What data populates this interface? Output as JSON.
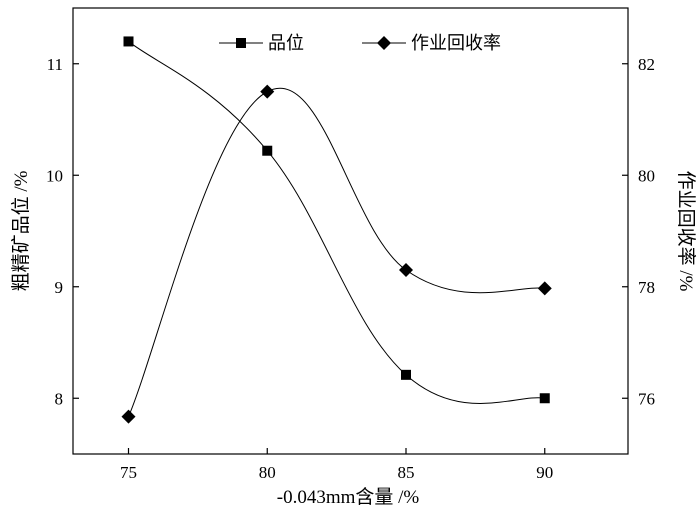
{
  "chart_data": {
    "type": "line",
    "x": [
      75,
      80,
      85,
      90
    ],
    "xlabel": "-0.043mm含量 /%",
    "ylabel_left": "粗精矿品位 /%",
    "ylabel_right": "作业回收率 /%",
    "xlim": [
      73,
      93
    ],
    "ylim_left": [
      7.5,
      11.5
    ],
    "ylim_right": [
      75,
      83
    ],
    "x_ticks": [
      "75",
      "80",
      "85",
      "90"
    ],
    "y_left_ticks": [
      "8",
      "9",
      "10",
      "11"
    ],
    "y_right_ticks": [
      "76",
      "78",
      "80",
      "82"
    ],
    "legend_position": "top-center",
    "grid": false,
    "series": [
      {
        "name": "品位",
        "axis": "left",
        "marker": "square",
        "values": [
          11.2,
          10.22,
          8.21,
          8.0
        ]
      },
      {
        "name": "作业回收率",
        "axis": "right",
        "marker": "diamond",
        "values": [
          75.67,
          81.5,
          78.3,
          77.97
        ]
      }
    ]
  }
}
